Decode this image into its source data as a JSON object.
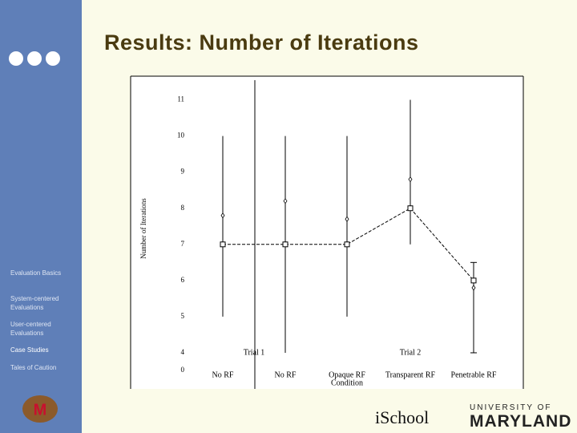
{
  "slide": {
    "title": "Results: Number of Iterations",
    "nav": [
      "Evaluation Basics",
      "System-centered Evaluations",
      "User-centered Evaluations",
      "Case Studies",
      "Tales of Caution"
    ],
    "footer": [
      "iSchool",
      "UNIVERSITY OF",
      "MARYLAND"
    ]
  },
  "chart_data": {
    "type": "line",
    "ylabel": "Number of Iterations",
    "xlabel": "Condition",
    "categories": [
      "No RF",
      "No RF",
      "Opaque RF",
      "Transparent RF",
      "Penetrable RF"
    ],
    "groups": [
      {
        "label": "Trial 1",
        "span": [
          0,
          1
        ]
      },
      {
        "label": "Trial 2",
        "span": [
          2,
          4
        ]
      }
    ],
    "series": [
      {
        "color": "#000000",
        "values": [
          7,
          7,
          7,
          8,
          6
        ],
        "low": [
          5,
          4,
          5,
          7,
          4
        ],
        "high": [
          10,
          10,
          10,
          11,
          6.5
        ]
      },
      {
        "color": "#000000",
        "values": [
          7.8,
          8.2,
          7.7,
          8.8,
          5.8
        ]
      }
    ],
    "ylim": [
      3.6,
      11.3
    ],
    "yticks": [
      4,
      5,
      6,
      7,
      8,
      9,
      10,
      11
    ],
    "y_break_tick": 0
  }
}
